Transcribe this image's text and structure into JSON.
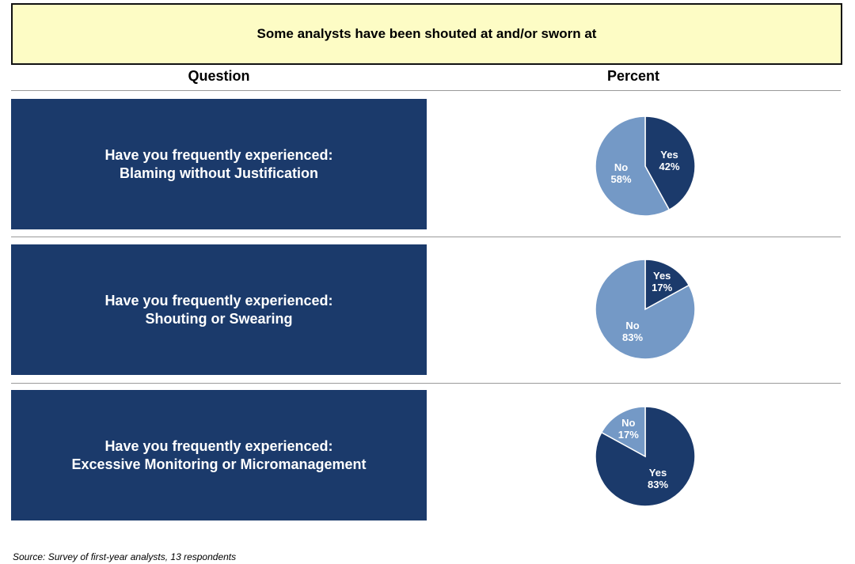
{
  "title": "Some analysts have been shouted at and/or sworn at",
  "columns": {
    "question": "Question",
    "percent": "Percent"
  },
  "colors": {
    "yes": "#1b3a6b",
    "no": "#7499c6",
    "title_bg": "#fdfcc5"
  },
  "chart_data": [
    {
      "type": "pie",
      "question_line1": "Have you frequently experienced:",
      "question_line2": "Blaming without Justification",
      "slices": [
        {
          "label": "Yes",
          "value": 42,
          "display": "42%",
          "color": "#1b3a6b"
        },
        {
          "label": "No",
          "value": 58,
          "display": "58%",
          "color": "#7499c6"
        }
      ]
    },
    {
      "type": "pie",
      "question_line1": "Have you frequently experienced:",
      "question_line2": "Shouting or Swearing",
      "slices": [
        {
          "label": "Yes",
          "value": 17,
          "display": "17%",
          "color": "#1b3a6b"
        },
        {
          "label": "No",
          "value": 83,
          "display": "83%",
          "color": "#7499c6"
        }
      ]
    },
    {
      "type": "pie",
      "question_line1": "Have you frequently experienced:",
      "question_line2": "Excessive Monitoring or Micromanagement",
      "slices": [
        {
          "label": "Yes",
          "value": 83,
          "display": "83%",
          "color": "#1b3a6b"
        },
        {
          "label": "No",
          "value": 17,
          "display": "17%",
          "color": "#7499c6"
        }
      ]
    }
  ],
  "source": "Source: Survey of first-year analysts, 13 respondents"
}
